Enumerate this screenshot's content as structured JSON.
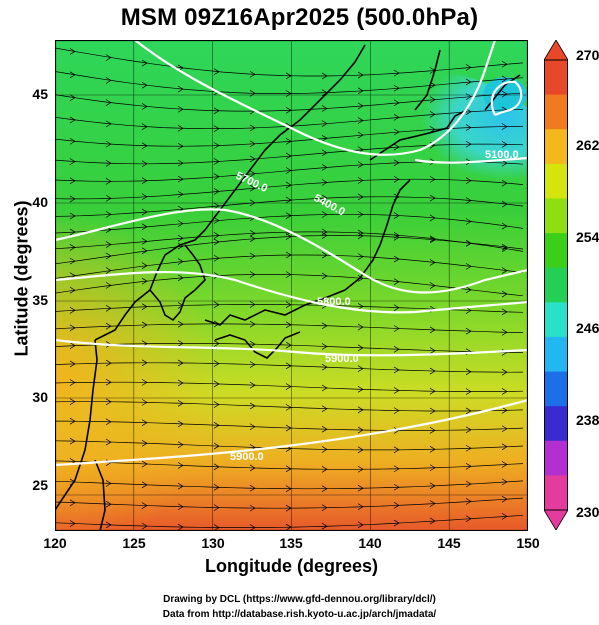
{
  "title": "MSM 09Z16Apr2025 (500.0hPa)",
  "axes": {
    "xlabel": "Longitude (degrees)",
    "ylabel": "Latitude  (degrees)",
    "xticks": [
      "120",
      "125",
      "130",
      "135",
      "140",
      "145",
      "150"
    ],
    "yticks": [
      "45",
      "40",
      "35",
      "30",
      "25"
    ]
  },
  "colorbar": {
    "ticks": [
      "270",
      "262",
      "254",
      "246",
      "238",
      "230"
    ],
    "colors": [
      "#e43c9e",
      "#b22fd0",
      "#3a2bd0",
      "#1d6fe8",
      "#22b7f0",
      "#29e0c8",
      "#23cf55",
      "#3ccf1a",
      "#8ede12",
      "#d4e40d",
      "#f2b81c",
      "#f07a21",
      "#e8482a"
    ]
  },
  "contour_labels": [
    "5100.0",
    "5400.0",
    "5700.0",
    "5800.0",
    "5900.0",
    "5900.0",
    "5400.0"
  ],
  "credits": {
    "line1": "Drawing by DCL (https://www.gfd-dennou.org/library/dcl/)",
    "line2": "Data from http://database.rish.kyoto-u.ac.jp/arch/jmadata/"
  },
  "chart_data": {
    "type": "heatmap",
    "title": "MSM 09Z16Apr2025 (500.0hPa)",
    "xlabel": "Longitude (degrees)",
    "ylabel": "Latitude  (degrees)",
    "xlim": [
      120,
      150
    ],
    "ylim": [
      22.4,
      47.6
    ],
    "variable_range": [
      230,
      270
    ],
    "colorbar_ticks": [
      230,
      238,
      246,
      254,
      262,
      270
    ],
    "overlays": [
      "geopotential height contours",
      "wind streamlines",
      "coastlines"
    ]
  }
}
